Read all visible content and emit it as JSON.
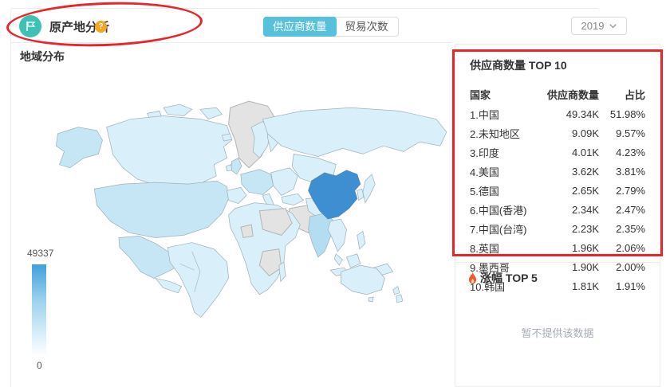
{
  "header": {
    "title": "原产地分析",
    "help": "?"
  },
  "tabs": [
    {
      "label": "供应商数量",
      "active": true
    },
    {
      "label": "贸易次数",
      "active": false
    }
  ],
  "year_selector": {
    "value": "2019"
  },
  "map_panel": {
    "title": "地域分布",
    "legend": {
      "max": "49337",
      "min": "0"
    }
  },
  "top10_panel": {
    "title": "供应商数量 TOP 10",
    "columns": {
      "country": "国家",
      "count": "供应商数量",
      "share": "占比"
    },
    "rows": [
      {
        "country": "1.中国",
        "count": "49.34K",
        "share": "51.98%"
      },
      {
        "country": "2.未知地区",
        "count": "9.09K",
        "share": "9.57%"
      },
      {
        "country": "3.印度",
        "count": "4.01K",
        "share": "4.23%"
      },
      {
        "country": "4.美国",
        "count": "3.62K",
        "share": "3.81%"
      },
      {
        "country": "5.德国",
        "count": "2.65K",
        "share": "2.79%"
      },
      {
        "country": "6.中国(香港)",
        "count": "2.34K",
        "share": "2.47%"
      },
      {
        "country": "7.中国(台湾)",
        "count": "2.23K",
        "share": "2.35%"
      },
      {
        "country": "8.英国",
        "count": "1.96K",
        "share": "2.06%"
      },
      {
        "country": "9.墨西哥",
        "count": "1.90K",
        "share": "2.00%"
      },
      {
        "country": "10.韩国",
        "count": "1.81K",
        "share": "1.91%"
      }
    ]
  },
  "growth_panel": {
    "title": "涨幅 TOP 5",
    "empty_text": "暂不提供该数据"
  },
  "colors": {
    "accent_teal": "#3fc1b6",
    "tab_active": "#55c1db",
    "help_orange": "#f6a623",
    "annotation_red": "#e7262b",
    "map_china": "#3e8fd2",
    "map_default": "#d9effa",
    "map_nodata": "#e3e3e3",
    "legend_top": "#41a0db",
    "flame_orange": "#f4582a"
  },
  "chart_data": {
    "type": "heatmap",
    "subtype": "choropleth_world_map",
    "title": "地域分布",
    "colorbar_range": [
      0,
      49337
    ],
    "legend_position": "bottom-left",
    "values": [
      {
        "country": "中国",
        "suppliers": 49340,
        "share_pct": 51.98
      },
      {
        "country": "未知地区",
        "suppliers": 9090,
        "share_pct": 9.57
      },
      {
        "country": "印度",
        "suppliers": 4010,
        "share_pct": 4.23
      },
      {
        "country": "美国",
        "suppliers": 3620,
        "share_pct": 3.81
      },
      {
        "country": "德国",
        "suppliers": 2650,
        "share_pct": 2.79
      },
      {
        "country": "中国(香港)",
        "suppliers": 2340,
        "share_pct": 2.47
      },
      {
        "country": "中国(台湾)",
        "suppliers": 2230,
        "share_pct": 2.35
      },
      {
        "country": "英国",
        "suppliers": 1960,
        "share_pct": 2.06
      },
      {
        "country": "墨西哥",
        "suppliers": 1900,
        "share_pct": 2.0
      },
      {
        "country": "韩国",
        "suppliers": 1810,
        "share_pct": 1.91
      }
    ],
    "note": "countries shaded blue by supplier count, gray = no data, China darkest"
  }
}
